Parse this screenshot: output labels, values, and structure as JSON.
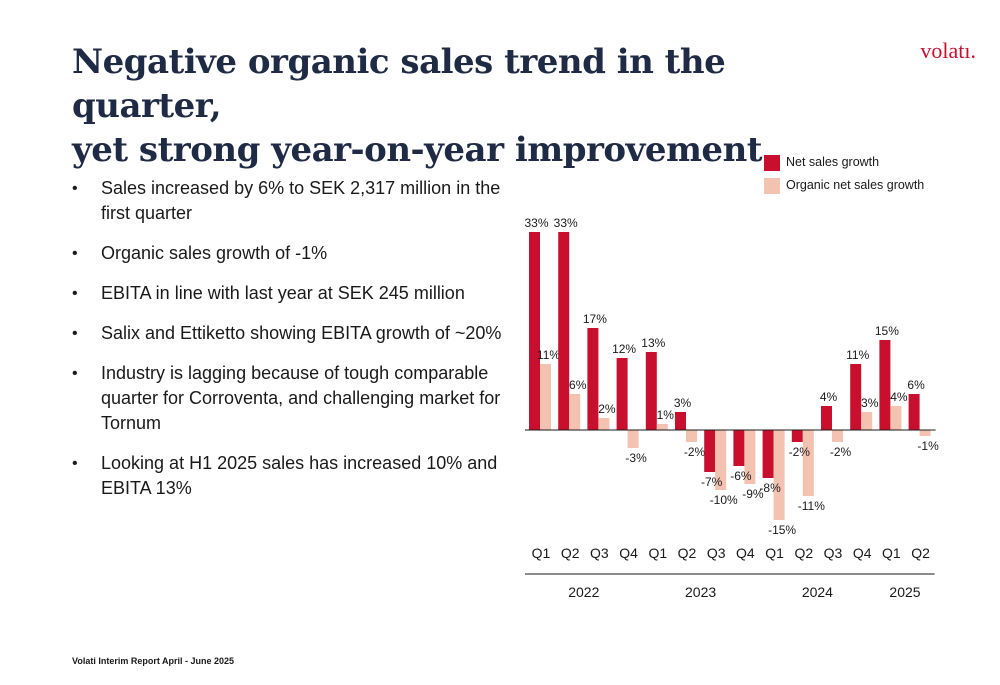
{
  "header": {
    "title_line1": "Negative organic sales trend in the quarter,",
    "title_line2": "yet strong year-on-year improvement",
    "logo": "volatı."
  },
  "bullets": [
    "Sales increased by 6% to SEK 2,317 million in the first quarter",
    "Organic sales growth of -1%",
    "EBITA in line with last year at SEK 245 million",
    "Salix and Ettiketto showing EBITA growth of ~20%",
    "Industry is lagging because of tough comparable quarter for Corroventa, and challenging market for Tornum",
    "Looking at H1 2025 sales has increased 10% and EBITA 13%"
  ],
  "bullet_symbol": "•",
  "footer": "Volati Interim Report April - June 2025",
  "colors": {
    "net": "#c8102e",
    "organic": "#f4c2b0",
    "title": "#1f2a44"
  },
  "chart_data": {
    "type": "bar",
    "categories": [
      "Q1",
      "Q2",
      "Q3",
      "Q4",
      "Q1",
      "Q2",
      "Q3",
      "Q4",
      "Q1",
      "Q2",
      "Q3",
      "Q4",
      "Q1",
      "Q2"
    ],
    "groups": [
      {
        "label": "2022",
        "count": 4
      },
      {
        "label": "2023",
        "count": 4
      },
      {
        "label": "2024",
        "count": 4
      },
      {
        "label": "2025",
        "count": 2
      }
    ],
    "series": [
      {
        "name": "Net sales growth",
        "values": [
          33,
          33,
          17,
          12,
          13,
          3,
          -7,
          -6,
          -8,
          -2,
          4,
          11,
          15,
          6
        ]
      },
      {
        "name": "Organic net sales growth",
        "values": [
          11,
          6,
          2,
          -3,
          1,
          -2,
          -10,
          -9,
          -15,
          -11,
          -2,
          3,
          4,
          -1
        ]
      }
    ],
    "ylim": [
      -15,
      33
    ],
    "unit": "%",
    "legend_position": "top-right"
  }
}
